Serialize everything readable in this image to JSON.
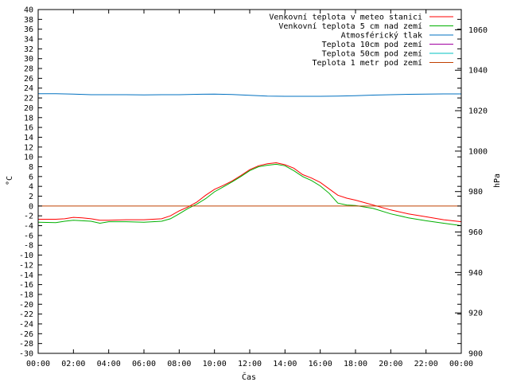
{
  "chart_data": {
    "type": "line",
    "title": "",
    "xlabel": "Čas",
    "ylabel": "°C",
    "y2label": "hPa",
    "x_ticks": [
      "00:00",
      "02:00",
      "04:00",
      "06:00",
      "08:00",
      "10:00",
      "12:00",
      "14:00",
      "16:00",
      "18:00",
      "20:00",
      "22:00",
      "00:00"
    ],
    "x_range_hours": [
      0,
      24
    ],
    "ylim": [
      -30,
      40
    ],
    "y_step": 2,
    "y2lim": [
      900,
      1070
    ],
    "y2_ticks": [
      900,
      920,
      940,
      960,
      980,
      1000,
      1020,
      1040,
      1060
    ],
    "grid": false,
    "legend_position": "top-right",
    "series": [
      {
        "name": "Venkovní teplota v meteo stanici",
        "color": "#ff0000",
        "axis": "y1",
        "x": [
          0,
          1,
          1.5,
          2,
          2.5,
          3,
          3.5,
          4,
          5,
          6,
          7,
          7.5,
          8,
          8.5,
          9,
          9.5,
          10,
          10.5,
          11,
          11.5,
          12,
          12.5,
          13,
          13.5,
          14,
          14.5,
          15,
          15.5,
          16,
          16.5,
          17,
          17.5,
          18,
          19,
          20,
          21,
          22,
          23,
          24
        ],
        "values": [
          -2.7,
          -2.7,
          -2.6,
          -2.3,
          -2.4,
          -2.6,
          -2.9,
          -2.9,
          -2.8,
          -2.8,
          -2.6,
          -2.0,
          -1.0,
          -0.2,
          0.8,
          2.2,
          3.4,
          4.2,
          5.1,
          6.2,
          7.4,
          8.2,
          8.6,
          8.8,
          8.4,
          7.7,
          6.4,
          5.7,
          4.8,
          3.5,
          2.2,
          1.6,
          1.2,
          0.2,
          -0.8,
          -1.6,
          -2.2,
          -2.8,
          -3.2
        ]
      },
      {
        "name": "Venkovní teplota 5 cm nad zemí",
        "color": "#00b000",
        "axis": "y1",
        "x": [
          0,
          1,
          1.5,
          2,
          2.5,
          3,
          3.5,
          4,
          5,
          6,
          7,
          7.5,
          8,
          8.5,
          9,
          9.5,
          10,
          10.5,
          11,
          11.5,
          12,
          12.5,
          13,
          13.5,
          14,
          14.5,
          15,
          15.5,
          16,
          16.5,
          17,
          17.5,
          18,
          19,
          20,
          21,
          22,
          23,
          24
        ],
        "values": [
          -3.3,
          -3.4,
          -3.1,
          -2.9,
          -3.0,
          -3.1,
          -3.5,
          -3.2,
          -3.2,
          -3.3,
          -3.1,
          -2.6,
          -1.6,
          -0.5,
          0.4,
          1.5,
          2.9,
          3.9,
          4.9,
          6.0,
          7.2,
          8.0,
          8.3,
          8.5,
          8.2,
          7.2,
          6.0,
          5.2,
          4.1,
          2.6,
          0.6,
          0.2,
          0.1,
          -0.5,
          -1.6,
          -2.4,
          -3.0,
          -3.5,
          -4.0
        ]
      },
      {
        "name": "Atmosférický tlak",
        "color": "#0070c0",
        "axis": "y2",
        "x": [
          0,
          1,
          2,
          3,
          4,
          5,
          6,
          7,
          8,
          9,
          10,
          11,
          12,
          13,
          14,
          15,
          16,
          17,
          18,
          19,
          20,
          21,
          22,
          23,
          24
        ],
        "values": [
          1028.4,
          1028.4,
          1028.2,
          1027.9,
          1027.9,
          1027.9,
          1027.8,
          1027.9,
          1027.9,
          1028.1,
          1028.2,
          1028.0,
          1027.6,
          1027.2,
          1027.1,
          1027.1,
          1027.1,
          1027.2,
          1027.4,
          1027.7,
          1027.9,
          1028.1,
          1028.2,
          1028.3,
          1028.3
        ]
      },
      {
        "name": "Teplota 10cm pod zemí",
        "color": "#a000a0",
        "axis": "y1",
        "x": [],
        "values": []
      },
      {
        "name": "Teplota 50cm pod zemí",
        "color": "#00c0c0",
        "axis": "y1",
        "x": [],
        "values": []
      },
      {
        "name": "Teplota 1 metr pod zemí",
        "color": "#c04000",
        "axis": "y1",
        "x": [
          0,
          24
        ],
        "values": [
          0,
          0
        ]
      }
    ]
  }
}
